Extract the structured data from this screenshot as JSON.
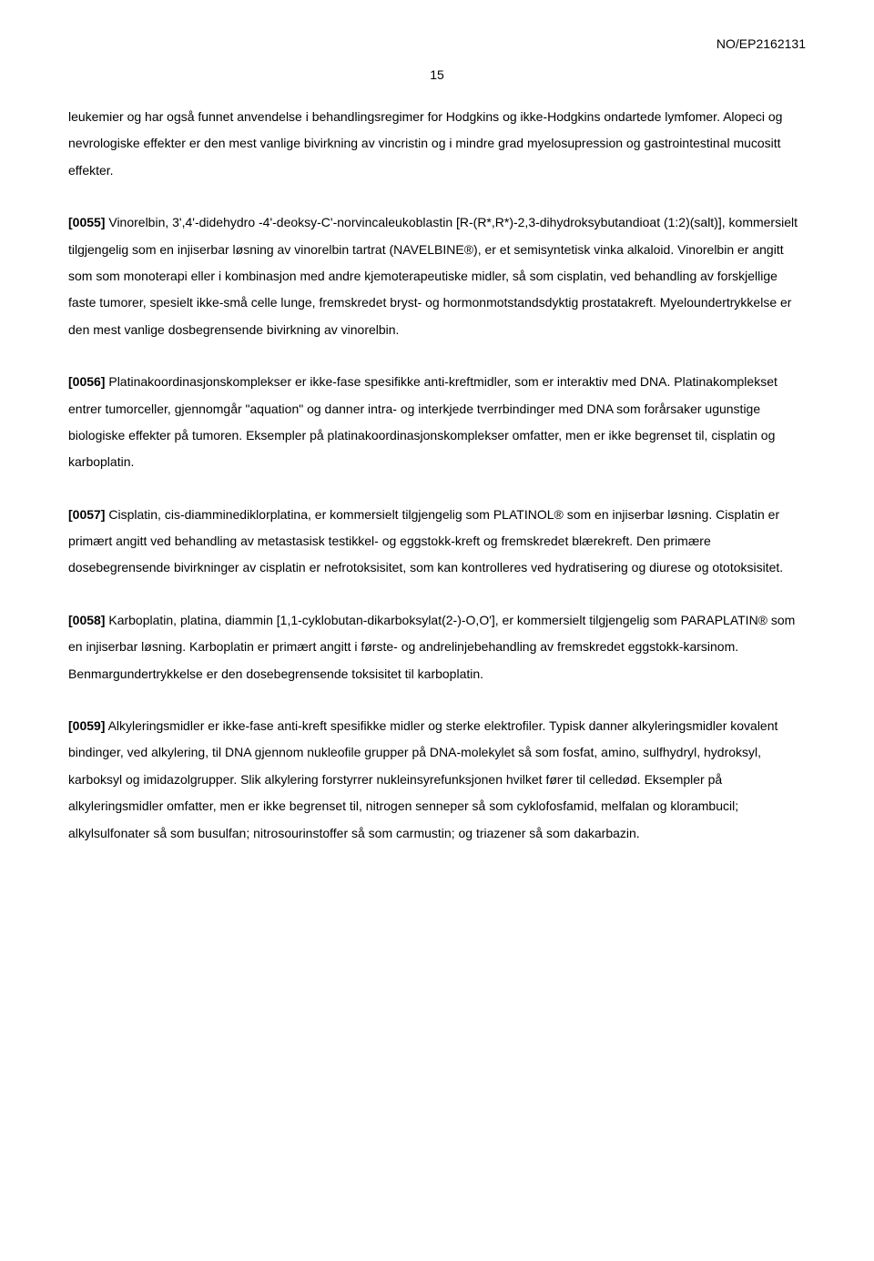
{
  "doc": {
    "reference": "NO/EP2162131",
    "page_number": "15",
    "font_family": "Verdana",
    "text_color": "#000000",
    "background_color": "#ffffff",
    "body_fontsize": 14,
    "line_height": 2.1,
    "paragraphs": [
      {
        "ref": "",
        "text_before": "leukemier og har også funnet anvendelse i behandlingsregimer for Hodgkins og ikke-Hodgkins ondartede lymfomer. Alopeci og nevrologiske effekter er den mest vanlige bivirkning av vincristin og i mindre grad myelosupression og gastrointestinal mucositt effekter."
      },
      {
        "ref": "[0055]",
        "text_after": " Vinorelbin, 3',4'-didehydro -4'-deoksy-C'-norvincaleukoblastin [R-(R*,R*)-2,3-dihydroksybutandioat (1:2)(salt)], kommersielt tilgjengelig som en injiserbar løsning av vinorelbin tartrat (NAVELBINE®), er et semisyntetisk vinka alkaloid. Vinorelbin er angitt som som monoterapi eller i kombinasjon med andre kjemoterapeutiske midler, så som cisplatin, ved behandling av forskjellige faste tumorer, spesielt ikke-små celle lunge, fremskredet bryst- og hormonmotstandsdyktig prostatakreft. Myeloundertrykkelse er den mest vanlige dosbegrensende bivirkning av vinorelbin."
      },
      {
        "ref": "[0056]",
        "text_after": " Platinakoordinasjonskomplekser er ikke-fase spesifikke anti-kreftmidler, som er interaktiv med DNA. Platinakomplekset entrer tumorceller, gjennomgår \"aquation\" og danner intra- og interkjede tverrbindinger med DNA som forårsaker ugunstige biologiske effekter på tumoren. Eksempler på platinakoordinasjonskomplekser omfatter, men er ikke begrenset til, cisplatin og karboplatin."
      },
      {
        "ref": "[0057]",
        "text_after": " Cisplatin, cis-diamminediklorplatina, er kommersielt tilgjengelig som PLATINOL® som en injiserbar løsning. Cisplatin er primært angitt ved behandling av metastasisk testikkel- og eggstokk-kreft og fremskredet blærekreft. Den primære dosebegrensende bivirkninger av cisplatin er nefrotoksisitet, som kan kontrolleres ved hydratisering og diurese og ototoksisitet."
      },
      {
        "ref": "[0058]",
        "text_after": " Karboplatin, platina, diammin [1,1-cyklobutan-dikarboksylat(2-)-O,O'], er kommersielt tilgjengelig som PARAPLATIN® som en injiserbar løsning. Karboplatin er primært angitt i første- og andrelinjebehandling av fremskredet eggstokk-karsinom. Benmargundertrykkelse er den dosebegrensende toksisitet til karboplatin."
      },
      {
        "ref": "[0059]",
        "text_after": " Alkyleringsmidler er ikke-fase anti-kreft spesifikke midler og sterke elektrofiler. Typisk danner alkyleringsmidler kovalent bindinger, ved alkylering, til DNA gjennom nukleofile grupper på DNA-molekylet så som fosfat, amino, sulfhydryl, hydroksyl, karboksyl og imidazolgrupper. Slik alkylering forstyrrer nukleinsyrefunksjonen hvilket fører til celledød. Eksempler på alkyleringsmidler omfatter, men er ikke begrenset til, nitrogen senneper så som cyklofosfamid, melfalan og klorambucil; alkylsulfonater så som busulfan; nitrosourinstoffer så som carmustin; og triazener så som dakarbazin."
      }
    ]
  }
}
